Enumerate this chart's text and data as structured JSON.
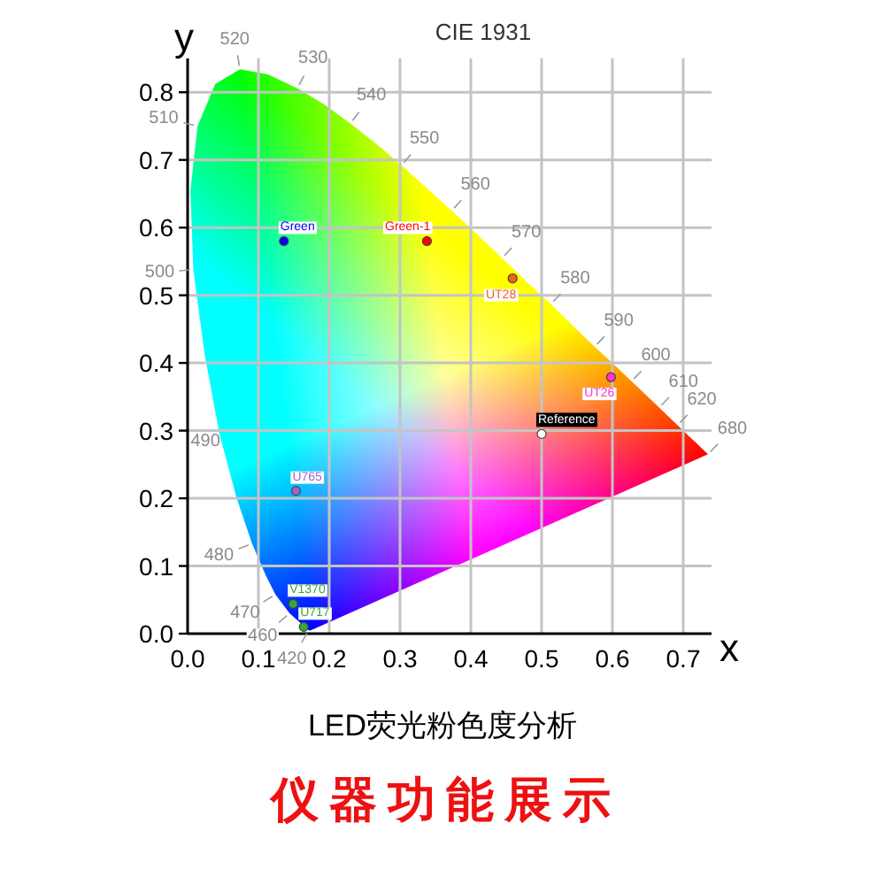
{
  "chart_data": {
    "type": "scatter",
    "title": "CIE 1931",
    "xlabel": "x",
    "ylabel": "y",
    "xlim": [
      0,
      0.74
    ],
    "ylim": [
      0,
      0.85
    ],
    "xticks": [
      {
        "value": 0,
        "label": "0.0"
      },
      0.1,
      0.2,
      0.3,
      0.4,
      0.5,
      0.6,
      0.7
    ],
    "yticks": [
      {
        "value": 0,
        "label": "0.0"
      },
      0.1,
      0.2,
      0.3,
      0.4,
      0.5,
      0.6,
      0.7,
      0.8
    ],
    "grid": true,
    "legend": false,
    "marker": "circle",
    "series": [
      {
        "type": "area",
        "marker": "none",
        "x": [
          0.174,
          0.171,
          0.164,
          0.157,
          0.144,
          0.124,
          0.11,
          0.091,
          0.069,
          0.045,
          0.024,
          0.008,
          0.004,
          0.014,
          0.039,
          0.074,
          0.114,
          0.155,
          0.193,
          0.23,
          0.266,
          0.302,
          0.337,
          0.373,
          0.409,
          0.444,
          0.479,
          0.513,
          0.545,
          0.575,
          0.603,
          0.627,
          0.666,
          0.692,
          0.708,
          0.719,
          0.735
        ],
        "values": [
          0.005,
          0.005,
          0.011,
          0.018,
          0.03,
          0.058,
          0.087,
          0.133,
          0.201,
          0.295,
          0.413,
          0.538,
          0.655,
          0.75,
          0.812,
          0.834,
          0.826,
          0.806,
          0.782,
          0.754,
          0.724,
          0.692,
          0.659,
          0.625,
          0.59,
          0.555,
          0.52,
          0.487,
          0.454,
          0.424,
          0.397,
          0.373,
          0.334,
          0.308,
          0.292,
          0.281,
          0.265
        ]
      },
      {
        "name": "Green",
        "color": "#0000ff",
        "x": [
          0.136
        ],
        "values": [
          0.58
        ]
      },
      {
        "name": "Green-1",
        "color": "#ff0000",
        "x": [
          0.338
        ],
        "values": [
          0.58
        ]
      },
      {
        "name": "UT28",
        "color": "#f06020",
        "x": [
          0.459
        ],
        "values": [
          0.525
        ]
      },
      {
        "name": "UT26",
        "color": "#ff33cc",
        "x": [
          0.598
        ],
        "values": [
          0.379
        ]
      },
      {
        "name": "Reference",
        "color": "#ffffff",
        "x": [
          0.5
        ],
        "values": [
          0.295
        ]
      },
      {
        "name": "U765",
        "color": "#9966cc",
        "x": [
          0.153
        ],
        "values": [
          0.211
        ]
      },
      {
        "name": "V1370",
        "color": "#33aa33",
        "x": [
          0.149
        ],
        "values": [
          0.044
        ]
      },
      {
        "name": "U717",
        "color": "#33aa33",
        "x": [
          0.164
        ],
        "values": [
          0.01
        ]
      }
    ],
    "annotations": [
      {
        "text": "420",
        "x": 0.171,
        "y": 0.005
      },
      {
        "text": "460",
        "x": 0.144,
        "y": 0.03
      },
      {
        "text": "470",
        "x": 0.124,
        "y": 0.058
      },
      {
        "text": "480",
        "x": 0.091,
        "y": 0.133
      },
      {
        "text": "490",
        "x": 0.045,
        "y": 0.295
      },
      {
        "text": "500",
        "x": 0.008,
        "y": 0.538
      },
      {
        "text": "510",
        "x": 0.014,
        "y": 0.75
      },
      {
        "text": "520",
        "x": 0.074,
        "y": 0.834
      },
      {
        "text": "530",
        "x": 0.155,
        "y": 0.806
      },
      {
        "text": "540",
        "x": 0.23,
        "y": 0.754
      },
      {
        "text": "550",
        "x": 0.302,
        "y": 0.692
      },
      {
        "text": "560",
        "x": 0.373,
        "y": 0.625
      },
      {
        "text": "570",
        "x": 0.444,
        "y": 0.555
      },
      {
        "text": "580",
        "x": 0.513,
        "y": 0.487
      },
      {
        "text": "590",
        "x": 0.575,
        "y": 0.424
      },
      {
        "text": "600",
        "x": 0.627,
        "y": 0.373
      },
      {
        "text": "610",
        "x": 0.666,
        "y": 0.334
      },
      {
        "text": "620",
        "x": 0.692,
        "y": 0.308
      },
      {
        "text": "680",
        "x": 0.735,
        "y": 0.265
      },
      "LED荧光粉色度分析",
      "仪器功能展示"
    ]
  }
}
